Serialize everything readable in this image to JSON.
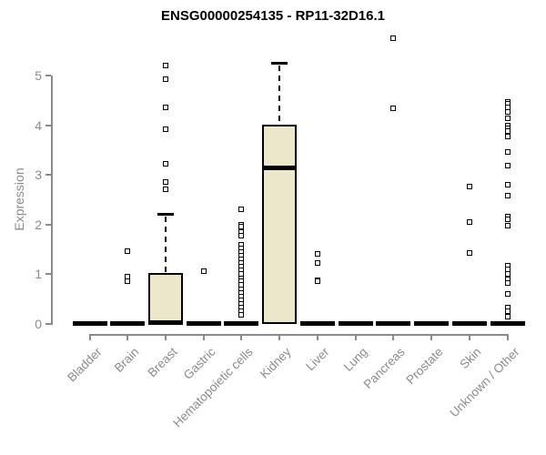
{
  "title": "ENSG00000254135 - RP11-32D16.1",
  "colors": {
    "background": "#FFFFFF",
    "axis": "#8A8A8A",
    "box_fill": "#ECE7CB",
    "box_border": "#000000",
    "outlier": "#000000",
    "title_color": "#000000"
  },
  "chart_data": {
    "type": "boxplot",
    "title": "ENSG00000254135 - RP11-32D16.1",
    "xlabel": "",
    "ylabel": "Expression",
    "ylim": [
      0,
      5.8
    ],
    "yticks": [
      0,
      1,
      2,
      3,
      4,
      5
    ],
    "grid": false,
    "legend": "none",
    "categories": [
      "Bladder",
      "Brain",
      "Breast",
      "Gastric",
      "Hematopoietic cells",
      "Kidney",
      "Liver",
      "Lung",
      "Pancreas",
      "Prostate",
      "Skin",
      "Unknown / Other"
    ],
    "series": [
      {
        "name": "Bladder",
        "q1": 0,
        "median": 0,
        "q3": 0,
        "whisker_low": 0,
        "whisker_high": 0,
        "outliers": []
      },
      {
        "name": "Brain",
        "q1": 0,
        "median": 0,
        "q3": 0,
        "whisker_low": 0,
        "whisker_high": 0,
        "outliers": [
          1.46,
          0.95,
          0.86
        ]
      },
      {
        "name": "Breast",
        "q1": 0.01,
        "median": 0.03,
        "q3": 1.02,
        "whisker_low": 0,
        "whisker_high": 2.22,
        "outliers": [
          2.71,
          2.86,
          3.23,
          3.92,
          4.36,
          4.93,
          5.21
        ]
      },
      {
        "name": "Gastric",
        "q1": 0,
        "median": 0,
        "q3": 0,
        "whisker_low": 0,
        "whisker_high": 0,
        "outliers": [
          1.06
        ]
      },
      {
        "name": "Hematopoietic cells",
        "q1": 0,
        "median": 0,
        "q3": 0,
        "whisker_low": 0,
        "whisker_high": 0,
        "outliers": [
          2.3,
          2.0,
          1.95,
          1.85,
          1.78,
          1.6,
          1.52,
          1.45,
          1.38,
          1.3,
          1.22,
          1.15,
          1.08,
          1.0,
          0.92,
          0.85,
          0.78,
          0.7,
          0.62,
          0.55,
          0.48,
          0.4,
          0.32,
          0.25,
          0.18
        ]
      },
      {
        "name": "Kidney",
        "q1": 0,
        "median": 3.15,
        "q3": 4.02,
        "whisker_low": 0,
        "whisker_high": 5.27,
        "outliers": []
      },
      {
        "name": "Liver",
        "q1": 0,
        "median": 0,
        "q3": 0,
        "whisker_low": 0,
        "whisker_high": 0,
        "outliers": [
          1.41,
          1.23,
          0.87,
          0.85
        ]
      },
      {
        "name": "Lung",
        "q1": 0,
        "median": 0,
        "q3": 0,
        "whisker_low": 0,
        "whisker_high": 0,
        "outliers": []
      },
      {
        "name": "Pancreas",
        "q1": 0,
        "median": 0,
        "q3": 0,
        "whisker_low": 0,
        "whisker_high": 0,
        "outliers": [
          5.75,
          4.34
        ]
      },
      {
        "name": "Prostate",
        "q1": 0,
        "median": 0,
        "q3": 0,
        "whisker_low": 0,
        "whisker_high": 0,
        "outliers": []
      },
      {
        "name": "Skin",
        "q1": 0,
        "median": 0,
        "q3": 0,
        "whisker_low": 0,
        "whisker_high": 0,
        "outliers": [
          2.77,
          2.05,
          1.43
        ]
      },
      {
        "name": "Unknown / Other",
        "q1": 0,
        "median": 0,
        "q3": 0,
        "whisker_low": 0,
        "whisker_high": 0,
        "outliers": [
          4.48,
          4.44,
          4.37,
          4.27,
          4.14,
          4.0,
          3.95,
          3.88,
          3.8,
          3.77,
          3.47,
          3.19,
          2.8,
          2.58,
          2.16,
          2.1,
          1.98,
          1.17,
          1.1,
          1.0,
          0.9,
          0.82,
          0.6,
          0.32,
          0.25,
          0.14
        ]
      }
    ]
  }
}
